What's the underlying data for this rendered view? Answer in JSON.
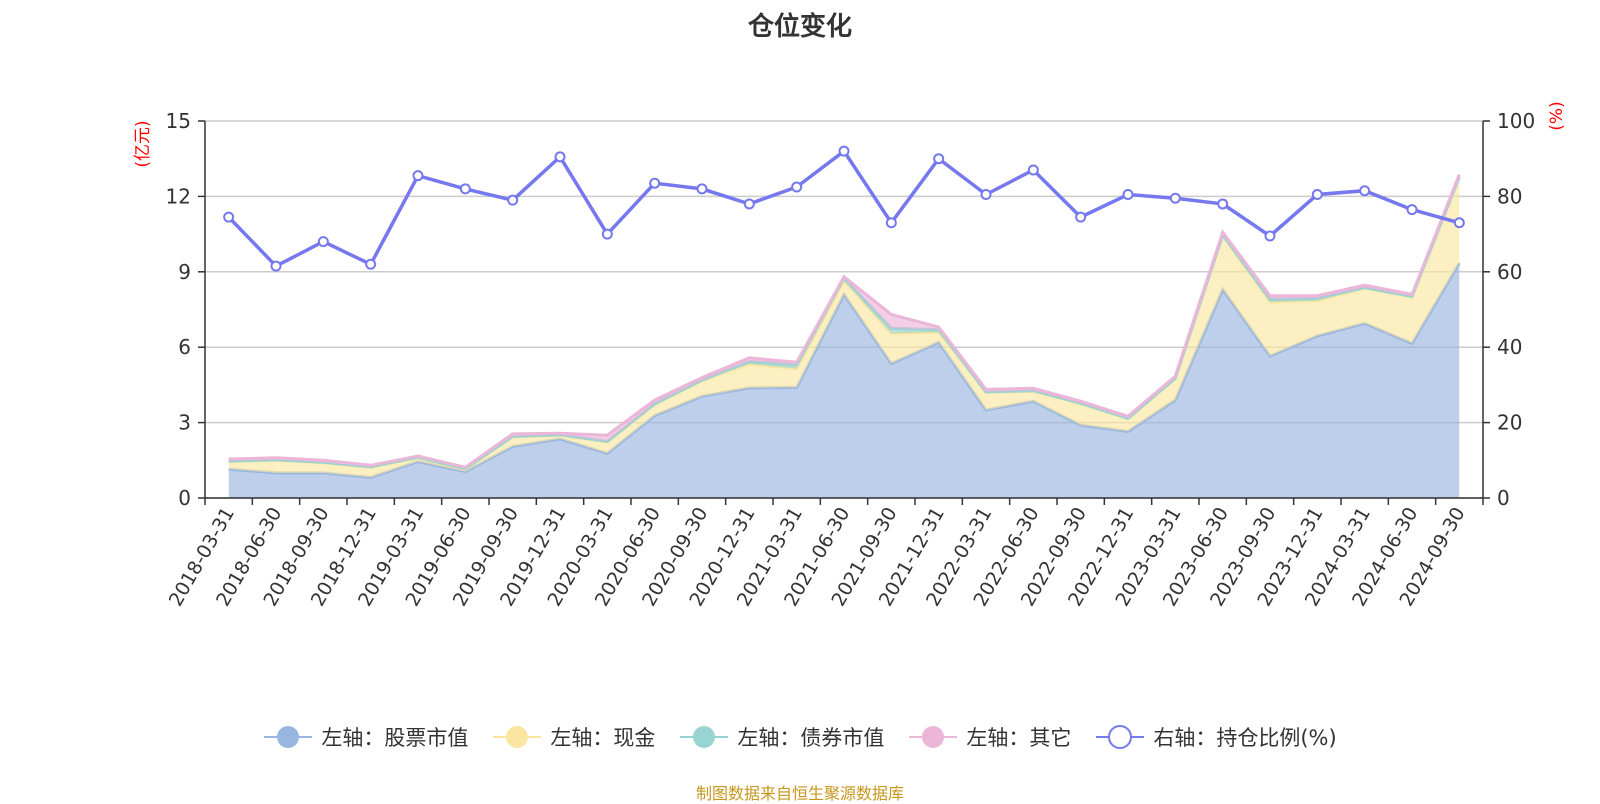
{
  "chart_data": {
    "type": "area",
    "title": "仓位变化",
    "left_axis_unit": "(亿元)",
    "right_axis_unit": "(%)",
    "left_ylim": [
      0,
      15
    ],
    "left_ticks": [
      0,
      3,
      6,
      9,
      12,
      15
    ],
    "right_ylim": [
      0,
      100
    ],
    "right_ticks": [
      0,
      20,
      40,
      60,
      80,
      100
    ],
    "categories": [
      "2018-03-31",
      "2018-06-30",
      "2018-09-30",
      "2018-12-31",
      "2019-03-31",
      "2019-06-30",
      "2019-09-30",
      "2019-12-31",
      "2020-03-31",
      "2020-06-30",
      "2020-09-30",
      "2020-12-31",
      "2021-03-31",
      "2021-06-30",
      "2021-09-30",
      "2021-12-31",
      "2022-03-31",
      "2022-06-30",
      "2022-09-30",
      "2022-12-31",
      "2023-03-31",
      "2023-06-30",
      "2023-09-30",
      "2023-12-31",
      "2024-03-31",
      "2024-06-30",
      "2024-09-30"
    ],
    "series": [
      {
        "name": "左轴：股票市值",
        "axis": "left",
        "color": "#99b6e0",
        "values": [
          1.15,
          1.0,
          1.0,
          0.82,
          1.45,
          1.05,
          2.05,
          2.35,
          1.78,
          3.28,
          4.05,
          4.38,
          4.4,
          8.1,
          5.35,
          6.2,
          3.5,
          3.85,
          2.9,
          2.65,
          3.9,
          8.3,
          5.65,
          6.45,
          6.95,
          6.15,
          9.35
        ]
      },
      {
        "name": "左轴：现金",
        "axis": "left",
        "color": "#fae6a0",
        "values": [
          0.3,
          0.5,
          0.4,
          0.4,
          0.15,
          0.1,
          0.38,
          0.15,
          0.45,
          0.45,
          0.62,
          0.95,
          0.75,
          0.55,
          1.2,
          0.4,
          0.7,
          0.4,
          0.85,
          0.5,
          0.85,
          2.15,
          2.15,
          1.4,
          1.4,
          1.85,
          3.4
        ]
      },
      {
        "name": "左轴：债券市值",
        "axis": "left",
        "color": "#98d4d2",
        "values": [
          0.02,
          0.02,
          0.02,
          0.02,
          0.02,
          0.02,
          0.02,
          0.02,
          0.02,
          0.02,
          0.02,
          0.1,
          0.15,
          0.1,
          0.2,
          0.1,
          0.02,
          0.02,
          0.02,
          0.02,
          0.02,
          0.02,
          0.1,
          0.1,
          0.02,
          0.02,
          0.02
        ]
      },
      {
        "name": "左轴：其它",
        "axis": "left",
        "color": "#ebb6d8",
        "values": [
          0.08,
          0.08,
          0.08,
          0.06,
          0.05,
          0.05,
          0.1,
          0.06,
          0.25,
          0.15,
          0.1,
          0.15,
          0.1,
          0.05,
          0.55,
          0.1,
          0.1,
          0.1,
          0.08,
          0.08,
          0.08,
          0.1,
          0.15,
          0.1,
          0.1,
          0.08,
          0.1
        ]
      },
      {
        "name": "右轴：持仓比例(%)",
        "axis": "right",
        "color": "#7578ee",
        "values": [
          74.5,
          61.5,
          68,
          62,
          85.5,
          82,
          79,
          90.5,
          70,
          83.5,
          82,
          78,
          82.5,
          92,
          73,
          90,
          80.5,
          87,
          74.5,
          80.5,
          79.5,
          78,
          69.5,
          80.5,
          81.5,
          76.5,
          73
        ]
      }
    ],
    "legend_position": "bottom",
    "source_note": "制图数据来自恒生聚源数据库"
  }
}
